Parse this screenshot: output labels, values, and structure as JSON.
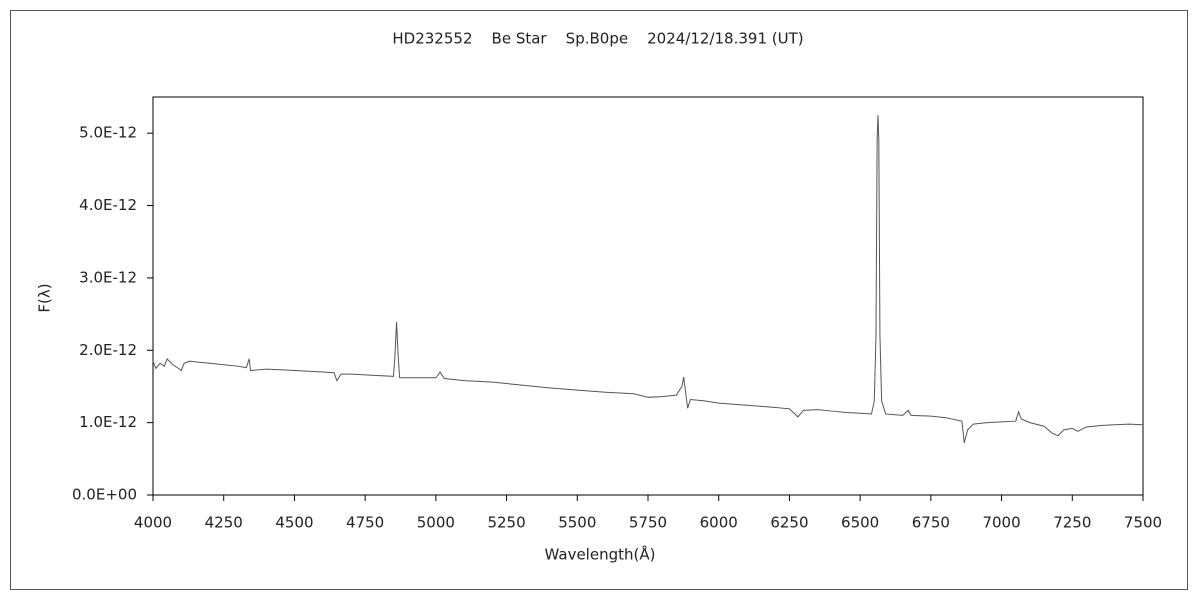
{
  "chart_data": {
    "type": "line",
    "title": "HD232552    Be Star    Sp.B0pe    2024/12/18.391 (UT)",
    "x_label": "Wavelength(Å)",
    "y_label": "F(λ)",
    "xlim": [
      4000,
      7500
    ],
    "xticks": [
      4000,
      4250,
      4500,
      4750,
      5000,
      5250,
      5500,
      5750,
      6000,
      6250,
      6500,
      6750,
      7000,
      7250,
      7500
    ],
    "ylim": [
      0,
      5.5e-12
    ],
    "yticks": [
      {
        "value": 0,
        "label": "0.0E+00"
      },
      {
        "value": 1e-12,
        "label": "1.0E-12"
      },
      {
        "value": 2e-12,
        "label": "2.0E-12"
      },
      {
        "value": 3e-12,
        "label": "3.0E-12"
      },
      {
        "value": 4e-12,
        "label": "4.0E-12"
      },
      {
        "value": 5e-12,
        "label": "5.0E-12"
      }
    ],
    "grid": false,
    "series": [
      {
        "color": "#555555",
        "x": [
          4000,
          4010,
          4025,
          4040,
          4050,
          4070,
          4090,
          4100,
          4110,
          4130,
          4150,
          4200,
          4250,
          4300,
          4330,
          4340,
          4345,
          4400,
          4450,
          4500,
          4550,
          4600,
          4640,
          4650,
          4665,
          4700,
          4750,
          4800,
          4850,
          4855,
          4861,
          4867,
          4872,
          4900,
          4950,
          5000,
          5015,
          5030,
          5100,
          5200,
          5300,
          5400,
          5500,
          5600,
          5700,
          5750,
          5800,
          5850,
          5870,
          5876,
          5882,
          5890,
          5900,
          5950,
          6000,
          6100,
          6200,
          6250,
          6280,
          6300,
          6350,
          6400,
          6450,
          6500,
          6540,
          6550,
          6556,
          6560,
          6563,
          6566,
          6570,
          6576,
          6590,
          6650,
          6670,
          6680,
          6750,
          6800,
          6860,
          6868,
          6880,
          6900,
          6950,
          7000,
          7050,
          7060,
          7070,
          7100,
          7150,
          7180,
          7200,
          7220,
          7250,
          7270,
          7300,
          7350,
          7400,
          7450,
          7500
        ],
        "values": [
          1.85e-12,
          1.75e-12,
          1.82e-12,
          1.78e-12,
          1.88e-12,
          1.8e-12,
          1.75e-12,
          1.72e-12,
          1.82e-12,
          1.85e-12,
          1.84e-12,
          1.82e-12,
          1.8e-12,
          1.78e-12,
          1.76e-12,
          1.88e-12,
          1.72e-12,
          1.74e-12,
          1.73e-12,
          1.72e-12,
          1.71e-12,
          1.7e-12,
          1.69e-12,
          1.58e-12,
          1.67e-12,
          1.67e-12,
          1.66e-12,
          1.65e-12,
          1.64e-12,
          1.9e-12,
          2.39e-12,
          1.9e-12,
          1.62e-12,
          1.62e-12,
          1.62e-12,
          1.62e-12,
          1.7e-12,
          1.61e-12,
          1.58e-12,
          1.56e-12,
          1.52e-12,
          1.48e-12,
          1.45e-12,
          1.42e-12,
          1.4e-12,
          1.35e-12,
          1.36e-12,
          1.38e-12,
          1.5e-12,
          1.63e-12,
          1.45e-12,
          1.2e-12,
          1.32e-12,
          1.3e-12,
          1.27e-12,
          1.24e-12,
          1.21e-12,
          1.19e-12,
          1.08e-12,
          1.17e-12,
          1.18e-12,
          1.16e-12,
          1.14e-12,
          1.13e-12,
          1.12e-12,
          1.3e-12,
          2.2e-12,
          4.9e-12,
          5.25e-12,
          4.9e-12,
          2.2e-12,
          1.3e-12,
          1.12e-12,
          1.1e-12,
          1.17e-12,
          1.1e-12,
          1.09e-12,
          1.07e-12,
          1.02e-12,
          7.2e-13,
          9e-13,
          9.8e-13,
          1e-12,
          1.01e-12,
          1.02e-12,
          1.15e-12,
          1.05e-12,
          1e-12,
          9.5e-13,
          8.5e-13,
          8.2e-13,
          9e-13,
          9.2e-13,
          8.8e-13,
          9.4e-13,
          9.6e-13,
          9.7e-13,
          9.8e-13,
          9.7e-13
        ]
      }
    ]
  }
}
